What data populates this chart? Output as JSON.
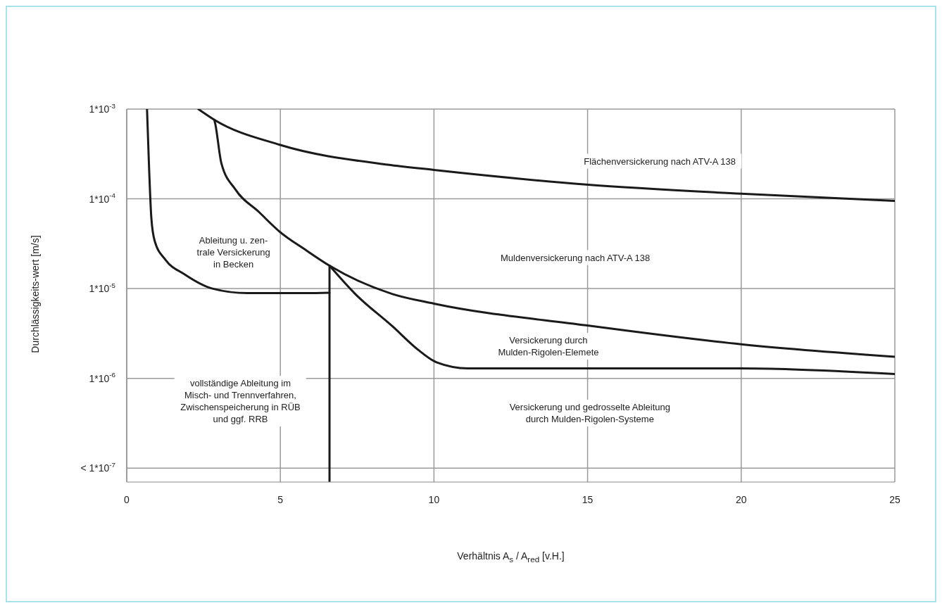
{
  "chart_data": {
    "type": "line",
    "xlabel": "Verhältnis A$_{s}$ / A$_{red}$ [v.H.]",
    "ylabel": "Durchlässigkeits-wert [m/s]",
    "log": "y",
    "grid": true,
    "marker": "none",
    "line_style": "solid",
    "xlim": [
      0,
      25
    ],
    "xticks": [
      0,
      5,
      10,
      15,
      20,
      25
    ],
    "ylim": [
      7e-08,
      0.001
    ],
    "yticks": [
      {
        "value": 1e-07,
        "label": "< 1*10$^{-7}$"
      },
      {
        "value": 1e-06,
        "label": "1*10$^{-6}$"
      },
      {
        "value": 1e-05,
        "label": "1*10$^{-5}$"
      },
      {
        "value": 0.0001,
        "label": "1*10$^{-4}$"
      },
      {
        "value": 0.001,
        "label": "1*10$^{-3}$"
      }
    ],
    "series": [
      {
        "color": "#1a1a1a",
        "x": [
          0.66,
          0.73,
          0.8,
          0.91,
          1.26,
          1.87,
          2.79,
          3.93,
          5.82,
          6.6
        ],
        "values": [
          0.001,
          0.00021,
          6.2e-05,
          3.4e-05,
          2.1e-05,
          1.45e-05,
          1e-05,
          8.9e-06,
          8.9e-06,
          9e-06
        ]
      },
      {
        "color": "#1a1a1a",
        "x": [
          6.6,
          6.6
        ],
        "values": [
          1.8e-05,
          7e-08
        ]
      },
      {
        "color": "#1a1a1a",
        "x": [
          2.33,
          2.85,
          4.98,
          8.49,
          10,
          14.95,
          20,
          25
        ],
        "values": [
          0.001,
          0.00076,
          0.0004,
          0.00024,
          0.00021,
          0.000144,
          0.000114,
          9.5e-05
        ]
      },
      {
        "color": "#1a1a1a",
        "x": [
          2.85,
          2.88,
          3.08,
          3.54,
          4.31,
          4.98,
          5.82,
          6.6,
          8.65,
          10,
          14.95,
          20,
          25
        ],
        "values": [
          0.00076,
          0.00069,
          0.00025,
          0.000127,
          7.1e-05,
          4.3e-05,
          2.7e-05,
          1.8e-05,
          8.7e-06,
          6.8e-06,
          3.9e-06,
          2.4e-06,
          1.74e-06
        ]
      },
      {
        "color": "#1a1a1a",
        "x": [
          6.6,
          7.44,
          8.65,
          9.47,
          10.1,
          11.1,
          14.95,
          20,
          21.7,
          25
        ],
        "values": [
          1.8e-05,
          8.7e-06,
          3.8e-06,
          2.1e-06,
          1.5e-06,
          1.29e-06,
          1.29e-06,
          1.29e-06,
          1.26e-06,
          1.12e-06
        ]
      }
    ],
    "annotations": [
      "Flächenversickerung nach ATV-A 138",
      "Ableitung u. zen-\ntrale Versickerung\nin Becken",
      "Muldenversickerung nach ATV-A 138",
      "Versickerung durch\nMulden-Rigolen-Elemete",
      "vollständige Ableitung im\nMisch- und Trennverfahren,\nZwischenspeicherung in RÜB\nund ggf. RRB",
      "Versickerung und gedrosselte Ableitung\ndurch Mulden-Rigolen-Systeme"
    ]
  }
}
